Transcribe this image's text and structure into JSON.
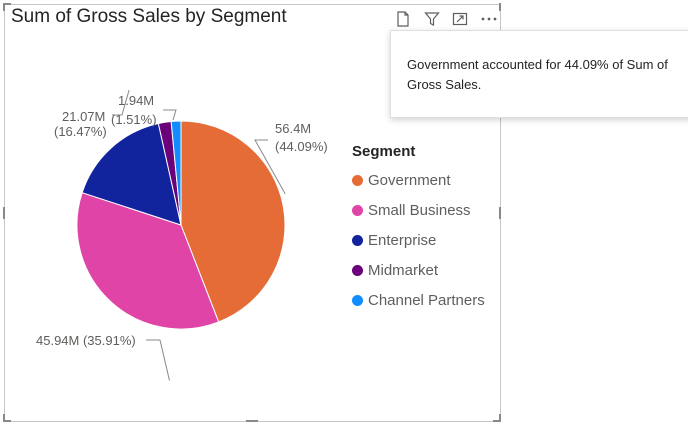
{
  "visual": {
    "title": "Sum of Gross Sales by Segment",
    "toolbar": {
      "icons": [
        "copy-icon",
        "filter-icon",
        "focus-mode-icon",
        "more-options-icon"
      ]
    }
  },
  "tooltip": {
    "text": "Government accounted for 44.09% of Sum of Gross Sales."
  },
  "legend": {
    "title": "Segment",
    "items": [
      {
        "label": "Government",
        "color": "#e66c37"
      },
      {
        "label": "Small Business",
        "color": "#e044a7"
      },
      {
        "label": "Enterprise",
        "color": "#12239e"
      },
      {
        "label": "Midmarket",
        "color": "#6b007b"
      },
      {
        "label": "Channel Partners",
        "color": "#118dff"
      }
    ]
  },
  "chart_data": {
    "type": "pie",
    "title": "Sum of Gross Sales by Segment",
    "legend_title": "Segment",
    "legend_position": "right",
    "slices": [
      {
        "label": "Government",
        "value_text": "56.4M",
        "percent_text": "(44.09%)",
        "percent": 44.09,
        "color": "#e66c37"
      },
      {
        "label": "Small Business",
        "value_text": "45.94M",
        "percent_text": "(35.91%)",
        "percent": 35.91,
        "color": "#e044a7"
      },
      {
        "label": "Enterprise",
        "value_text": "21.07M",
        "percent_text": "(16.47%)",
        "percent": 16.47,
        "color": "#12239e"
      },
      {
        "label": "Midmarket",
        "value_text": "",
        "percent_text": "",
        "percent": 1.98,
        "color": "#6b007b"
      },
      {
        "label": "Channel Partners",
        "value_text": "1.94M",
        "percent_text": "(1.51%)",
        "percent": 1.51,
        "color": "#118dff"
      }
    ]
  }
}
